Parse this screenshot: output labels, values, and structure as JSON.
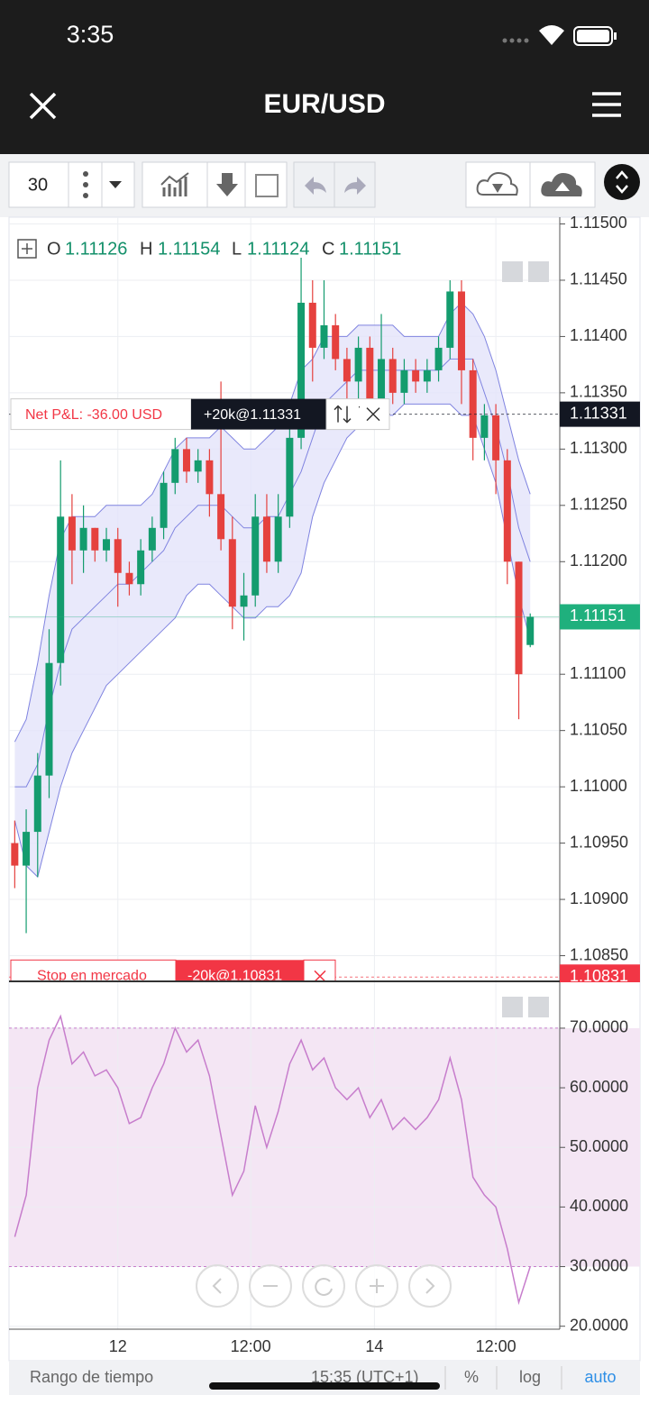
{
  "status_bar": {
    "time": "3:35"
  },
  "header": {
    "title": "EUR/USD"
  },
  "toolbar": {
    "interval": "30"
  },
  "legend": {
    "o_label": "O",
    "o": "1.11126",
    "h_label": "H",
    "h": "1.11154",
    "l_label": "L",
    "l": "1.11124",
    "c_label": "C",
    "c": "1.11151"
  },
  "orders": {
    "pnl": "Net P&L: -36.00 USD",
    "position": "+20k@1.11331",
    "stop_label": "Stop en mercado",
    "stop": "-20k@1.10831"
  },
  "chart_data": [
    {
      "type": "candlestick",
      "x": [
        0,
        1,
        2,
        3,
        4,
        5,
        6,
        7,
        8,
        9,
        10,
        11,
        12,
        13,
        14,
        15,
        16,
        17,
        18,
        19,
        20,
        21,
        22,
        23,
        24,
        25,
        26,
        27,
        28,
        29,
        30,
        31,
        32,
        33,
        34,
        35,
        36,
        37,
        38,
        39,
        40,
        41,
        42,
        43,
        44,
        45
      ],
      "open": [
        1.1095,
        1.1093,
        1.1096,
        1.1101,
        1.1111,
        1.1124,
        1.1121,
        1.1123,
        1.1121,
        1.1122,
        1.1119,
        1.1118,
        1.1121,
        1.1123,
        1.1127,
        1.113,
        1.1128,
        1.1129,
        1.1126,
        1.1122,
        1.1116,
        1.1117,
        1.1124,
        1.112,
        1.1124,
        1.1131,
        1.1143,
        1.1139,
        1.1141,
        1.1138,
        1.1136,
        1.1139,
        1.1134,
        1.1138,
        1.1135,
        1.1137,
        1.1136,
        1.1137,
        1.1139,
        1.1144,
        1.1137,
        1.1131,
        1.1133,
        1.1129,
        1.112,
        1.11126
      ],
      "high": [
        1.1097,
        1.1098,
        1.1103,
        1.1114,
        1.1129,
        1.1126,
        1.1125,
        1.1123,
        1.1123,
        1.1123,
        1.112,
        1.1122,
        1.1124,
        1.1128,
        1.1131,
        1.1131,
        1.113,
        1.113,
        1.1136,
        1.1124,
        1.1119,
        1.1126,
        1.1126,
        1.1126,
        1.1132,
        1.1147,
        1.1145,
        1.1145,
        1.1142,
        1.1139,
        1.114,
        1.114,
        1.1142,
        1.1139,
        1.1138,
        1.1138,
        1.1138,
        1.114,
        1.1145,
        1.1145,
        1.1138,
        1.1134,
        1.1134,
        1.113,
        1.112,
        1.11154
      ],
      "low": [
        1.1091,
        1.1087,
        1.1092,
        1.1099,
        1.1109,
        1.1118,
        1.1119,
        1.112,
        1.112,
        1.1116,
        1.1117,
        1.1117,
        1.112,
        1.1122,
        1.1126,
        1.1127,
        1.1127,
        1.1124,
        1.1121,
        1.1114,
        1.1113,
        1.1116,
        1.1119,
        1.1119,
        1.1123,
        1.113,
        1.1136,
        1.1138,
        1.1137,
        1.1134,
        1.1133,
        1.1133,
        1.1133,
        1.1134,
        1.1134,
        1.1135,
        1.1135,
        1.1136,
        1.1138,
        1.1134,
        1.1129,
        1.1129,
        1.1126,
        1.1118,
        1.1106,
        1.11124
      ],
      "close": [
        1.1093,
        1.1096,
        1.1101,
        1.1111,
        1.1124,
        1.1121,
        1.1123,
        1.1121,
        1.1122,
        1.1119,
        1.1118,
        1.1121,
        1.1123,
        1.1127,
        1.113,
        1.1128,
        1.1129,
        1.1126,
        1.1122,
        1.1116,
        1.1117,
        1.1124,
        1.112,
        1.1124,
        1.1131,
        1.1143,
        1.1139,
        1.1141,
        1.1138,
        1.1136,
        1.1139,
        1.1134,
        1.1138,
        1.1135,
        1.1137,
        1.1136,
        1.1137,
        1.1139,
        1.1144,
        1.1137,
        1.1131,
        1.1133,
        1.1129,
        1.112,
        1.111,
        1.11151
      ],
      "up_color": "#149c6e",
      "down_color": "#e5413e",
      "bands": {
        "color": "#7f83e0",
        "fill": "#e4e4fa",
        "upper": [
          1.1104,
          1.1106,
          1.1111,
          1.1117,
          1.1122,
          1.1124,
          1.1124,
          1.1124,
          1.1125,
          1.1125,
          1.1125,
          1.1125,
          1.1126,
          1.1128,
          1.113,
          1.1131,
          1.1131,
          1.1131,
          1.1132,
          1.1131,
          1.113,
          1.113,
          1.1131,
          1.1132,
          1.1134,
          1.1137,
          1.1138,
          1.114,
          1.114,
          1.114,
          1.1141,
          1.1141,
          1.1141,
          1.1141,
          1.114,
          1.114,
          1.114,
          1.114,
          1.1142,
          1.1143,
          1.1142,
          1.114,
          1.1137,
          1.1133,
          1.1129,
          1.1126
        ],
        "middle": [
          1.11,
          1.11,
          1.1102,
          1.1107,
          1.1111,
          1.1114,
          1.1115,
          1.1116,
          1.1117,
          1.1118,
          1.1118,
          1.1119,
          1.112,
          1.1121,
          1.1123,
          1.1124,
          1.1125,
          1.1125,
          1.1125,
          1.1124,
          1.1123,
          1.1123,
          1.1124,
          1.1124,
          1.1126,
          1.1128,
          1.1131,
          1.1134,
          1.1135,
          1.1136,
          1.1137,
          1.1137,
          1.1137,
          1.1137,
          1.1137,
          1.1137,
          1.1137,
          1.1137,
          1.1138,
          1.1138,
          1.1138,
          1.1135,
          1.1132,
          1.1128,
          1.1123,
          1.112
        ],
        "lower": [
          1.1097,
          1.1093,
          1.1092,
          1.1096,
          1.11,
          1.1103,
          1.1105,
          1.1107,
          1.1109,
          1.111,
          1.1111,
          1.1112,
          1.1113,
          1.1114,
          1.1115,
          1.1117,
          1.1118,
          1.1118,
          1.1117,
          1.1116,
          1.1115,
          1.1115,
          1.1116,
          1.1116,
          1.1117,
          1.1119,
          1.1124,
          1.1127,
          1.1129,
          1.1131,
          1.1132,
          1.1132,
          1.1133,
          1.1133,
          1.1134,
          1.1134,
          1.1134,
          1.1134,
          1.1134,
          1.1133,
          1.1133,
          1.113,
          1.1127,
          1.1122,
          1.1117,
          1.1113
        ]
      },
      "xlim": [
        -0.5,
        47.5
      ],
      "xticks": [
        {
          "value": 9.0,
          "label": "12"
        },
        {
          "value": 20.6,
          "label": "12:00"
        },
        {
          "value": 31.4,
          "label": "14"
        },
        {
          "value": 42.0,
          "label": "12:00"
        }
      ],
      "ylim": [
        1.10828,
        1.11506
      ],
      "yticks": [
        {
          "value": 1.115,
          "label": "1.11500"
        },
        {
          "value": 1.1145,
          "label": "1.11450"
        },
        {
          "value": 1.114,
          "label": "1.11400"
        },
        {
          "value": 1.1135,
          "label": "1.11350"
        },
        {
          "value": 1.113,
          "label": "1.11300"
        },
        {
          "value": 1.1125,
          "label": "1.11250"
        },
        {
          "value": 1.112,
          "label": "1.11200"
        },
        {
          "value": 1.1115,
          "label": "1.11150"
        },
        {
          "value": 1.111,
          "label": "1.11100"
        },
        {
          "value": 1.1105,
          "label": "1.11050"
        },
        {
          "value": 1.11,
          "label": "1.11000"
        },
        {
          "value": 1.1095,
          "label": "1.10950"
        },
        {
          "value": 1.109,
          "label": "1.10900"
        },
        {
          "value": 1.1085,
          "label": "1.10850"
        }
      ],
      "grid": true,
      "markers": [
        {
          "value": 1.11331,
          "label": "1.11331",
          "color": "#131722"
        },
        {
          "value": 1.11151,
          "label": "1.11151",
          "color": "#1fb07d"
        },
        {
          "value": 1.10831,
          "label": "1.10831",
          "color": "#f23645"
        }
      ]
    },
    {
      "type": "line",
      "x": [
        0,
        1,
        2,
        3,
        4,
        5,
        6,
        7,
        8,
        9,
        10,
        11,
        12,
        13,
        14,
        15,
        16,
        17,
        18,
        19,
        20,
        21,
        22,
        23,
        24,
        25,
        26,
        27,
        28,
        29,
        30,
        31,
        32,
        33,
        34,
        35,
        36,
        37,
        38,
        39,
        40,
        41,
        42,
        43,
        44,
        45
      ],
      "values": [
        35,
        42,
        60,
        68,
        72,
        64,
        66,
        62,
        63,
        60,
        54,
        55,
        60,
        64,
        70,
        66,
        68,
        62,
        52,
        42,
        46,
        57,
        50,
        56,
        64,
        68,
        63,
        65,
        60,
        58,
        60,
        55,
        58,
        53,
        55,
        53,
        55,
        58,
        65,
        58,
        45,
        42,
        40,
        33,
        24,
        30
      ],
      "color": "#c77dcc",
      "band": [
        30,
        70
      ],
      "band_color": "#f4e6f4",
      "xlim": [
        -0.5,
        47.5
      ],
      "ylim": [
        19.5,
        77.7
      ],
      "yticks": [
        {
          "value": 70,
          "label": "70.0000"
        },
        {
          "value": 60,
          "label": "60.0000"
        },
        {
          "value": 50,
          "label": "50.0000"
        },
        {
          "value": 40,
          "label": "40.0000"
        },
        {
          "value": 30,
          "label": "30.0000"
        },
        {
          "value": 20,
          "label": "20.0000"
        }
      ],
      "grid": true
    }
  ],
  "footer": {
    "range": "Rango de tiempo",
    "time": "15:35 (UTC+1)",
    "percent": "%",
    "log": "log",
    "auto": "auto"
  }
}
